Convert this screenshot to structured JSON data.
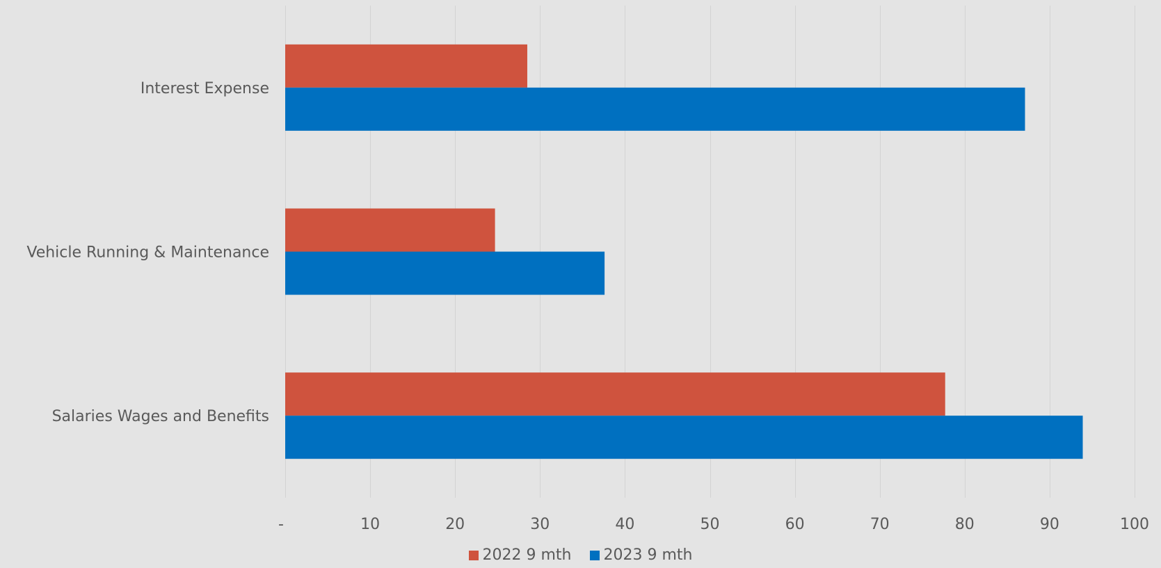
{
  "chart_data": {
    "type": "bar",
    "orientation": "horizontal",
    "categories": [
      "Interest Expense",
      "Vehicle Running & Maintenance",
      "Salaries Wages and Benefits"
    ],
    "series": [
      {
        "name": "2022 9 mth",
        "color": "#cf533e",
        "values": [
          28.5,
          24.7,
          77.7
        ]
      },
      {
        "name": "2023 9 mth",
        "color": "#0070c0",
        "values": [
          87.1,
          37.6,
          93.9
        ]
      }
    ],
    "xlim": [
      0,
      100
    ],
    "x_ticks": [
      0,
      10,
      20,
      30,
      40,
      50,
      60,
      70,
      80,
      90,
      100
    ],
    "x_tick_labels": [
      "-",
      "10",
      "20",
      "30",
      "40",
      "50",
      "60",
      "70",
      "80",
      "90",
      "100"
    ],
    "grid": true,
    "legend_position": "bottom",
    "title": "",
    "xlabel": "",
    "ylabel": ""
  }
}
